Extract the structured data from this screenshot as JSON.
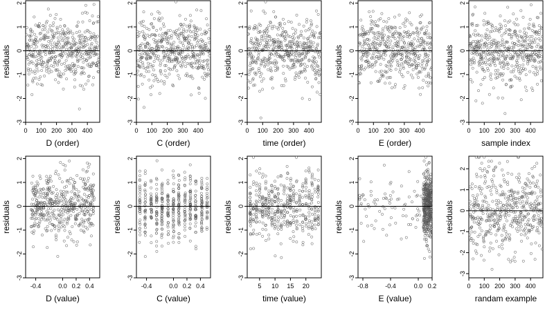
{
  "chart_data": [
    {
      "type": "scatter",
      "xlabel": "D (order)",
      "ylabel": "residuals",
      "xlim": [
        0,
        480
      ],
      "ylim": [
        -3,
        2.1
      ],
      "xticks": [
        0,
        100,
        200,
        300,
        400
      ],
      "yticks": [
        -3,
        -2,
        -1,
        0,
        1,
        2
      ],
      "hline": 0,
      "n": 480,
      "pattern": "index"
    },
    {
      "type": "scatter",
      "xlabel": "C (order)",
      "ylabel": "residuals",
      "xlim": [
        0,
        480
      ],
      "ylim": [
        -3,
        2.1
      ],
      "xticks": [
        0,
        100,
        200,
        300,
        400
      ],
      "yticks": [
        -3,
        -2,
        -1,
        0,
        1,
        2
      ],
      "hline": 0,
      "n": 480,
      "pattern": "index"
    },
    {
      "type": "scatter",
      "xlabel": "time (order)",
      "ylabel": "residuals",
      "xlim": [
        0,
        480
      ],
      "ylim": [
        -3,
        2.1
      ],
      "xticks": [
        0,
        100,
        200,
        300,
        400
      ],
      "yticks": [
        -3,
        -2,
        -1,
        0,
        1,
        2
      ],
      "hline": 0,
      "n": 480,
      "pattern": "index"
    },
    {
      "type": "scatter",
      "xlabel": "E (order)",
      "ylabel": "residuals",
      "xlim": [
        0,
        480
      ],
      "ylim": [
        -3,
        2.1
      ],
      "xticks": [
        0,
        100,
        200,
        300,
        400
      ],
      "yticks": [
        -3,
        -2,
        -1,
        0,
        1,
        2
      ],
      "hline": 0,
      "n": 480,
      "pattern": "index"
    },
    {
      "type": "scatter",
      "xlabel": "sample index",
      "ylabel": "residuals",
      "xlim": [
        0,
        480
      ],
      "ylim": [
        -3,
        2.1
      ],
      "xticks": [
        0,
        100,
        200,
        300,
        400
      ],
      "yticks": [
        -3,
        -2,
        -1,
        0,
        1,
        2
      ],
      "hline": 0,
      "n": 480,
      "pattern": "index"
    },
    {
      "type": "scatter",
      "xlabel": "D (value)",
      "ylabel": "residuals",
      "xlim": [
        -0.55,
        0.55
      ],
      "ylim": [
        -3,
        2.1
      ],
      "xticks": [
        -0.4,
        0.0,
        0.2,
        0.4
      ],
      "xtick_labels": [
        "-0.4",
        "0.0",
        "0.2",
        "0.4"
      ],
      "yticks": [
        -3,
        -2,
        -1,
        0,
        1,
        2
      ],
      "hline": 0,
      "n": 480,
      "pattern": "continuous"
    },
    {
      "type": "scatter",
      "xlabel": "C (value)",
      "ylabel": "residuals",
      "xlim": [
        -0.55,
        0.55
      ],
      "ylim": [
        -3,
        2.1
      ],
      "xticks": [
        -0.4,
        0.0,
        0.2,
        0.4
      ],
      "xtick_labels": [
        "-0.4",
        "0.0",
        "0.2",
        "0.4"
      ],
      "yticks": [
        -3,
        -2,
        -1,
        0,
        1,
        2
      ],
      "hline": 0,
      "n": 480,
      "pattern": "columns",
      "x_levels": [
        -0.5,
        -0.42,
        -0.33,
        -0.25,
        -0.17,
        -0.08,
        0.0,
        0.08,
        0.17,
        0.25,
        0.33,
        0.42,
        0.5
      ]
    },
    {
      "type": "scatter",
      "xlabel": "time (value)",
      "ylabel": "residuals",
      "xlim": [
        1,
        25
      ],
      "ylim": [
        -3,
        2.1
      ],
      "xticks": [
        5,
        10,
        15,
        20
      ],
      "xtick_labels": [
        "5",
        "10",
        "15",
        "20"
      ],
      "yticks": [
        -3,
        -2,
        -1,
        0,
        1,
        2
      ],
      "hline": 0,
      "n": 480,
      "pattern": "columns",
      "x_levels": [
        2,
        3,
        4,
        5,
        6,
        7,
        8,
        9,
        10,
        11,
        12,
        13,
        14,
        15,
        16,
        17,
        18,
        19,
        20,
        21,
        22,
        23,
        24
      ]
    },
    {
      "type": "scatter",
      "xlabel": "E (value)",
      "ylabel": "residuals",
      "xlim": [
        -0.87,
        0.2
      ],
      "ylim": [
        -3,
        2.1
      ],
      "xticks": [
        -0.8,
        -0.4,
        0.0,
        0.2
      ],
      "xtick_labels": [
        "-0.8",
        "-0.4",
        "0.0",
        "0.2"
      ],
      "yticks": [
        -3,
        -2,
        -1,
        0,
        1,
        2
      ],
      "hline": 0,
      "n": 480,
      "pattern": "skewed"
    },
    {
      "type": "scatter",
      "xlabel": "randam example",
      "ylabel": "residuals",
      "xlim": [
        0,
        480
      ],
      "ylim": [
        -3.2,
        2.6
      ],
      "xticks": [
        0,
        100,
        200,
        300,
        400
      ],
      "yticks": [
        -3,
        -2,
        -1,
        0,
        1,
        2
      ],
      "hline": 0,
      "n": 480,
      "pattern": "random"
    }
  ]
}
